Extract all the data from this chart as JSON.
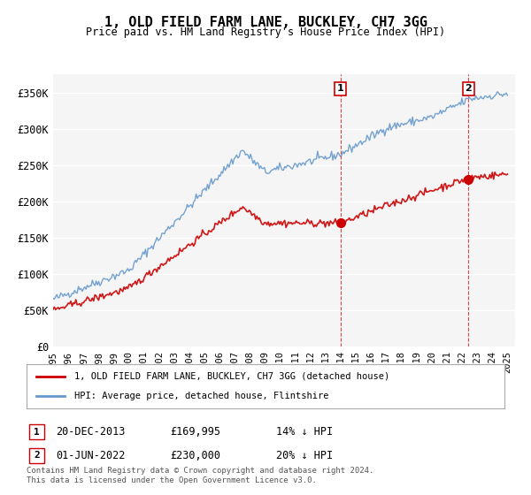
{
  "title": "1, OLD FIELD FARM LANE, BUCKLEY, CH7 3GG",
  "subtitle": "Price paid vs. HM Land Registry's House Price Index (HPI)",
  "ylabel_ticks": [
    "£0",
    "£50K",
    "£100K",
    "£150K",
    "£200K",
    "£250K",
    "£300K",
    "£350K"
  ],
  "ytick_values": [
    0,
    50000,
    100000,
    150000,
    200000,
    250000,
    300000,
    350000
  ],
  "ylim": [
    0,
    375000
  ],
  "xlim_start": 1995.0,
  "xlim_end": 2025.5,
  "legend_line1": "1, OLD FIELD FARM LANE, BUCKLEY, CH7 3GG (detached house)",
  "legend_line2": "HPI: Average price, detached house, Flintshire",
  "sale1_label": "1",
  "sale1_date": "20-DEC-2013",
  "sale1_price": "£169,995",
  "sale1_hpi": "14% ↓ HPI",
  "sale2_label": "2",
  "sale2_date": "01-JUN-2022",
  "sale2_price": "£230,000",
  "sale2_hpi": "20% ↓ HPI",
  "footnote": "Contains HM Land Registry data © Crown copyright and database right 2024.\nThis data is licensed under the Open Government Licence v3.0.",
  "red_color": "#cc0000",
  "blue_color": "#6699cc",
  "background_color": "#ffffff",
  "plot_bg_color": "#f5f5f5",
  "grid_color": "#ffffff",
  "sale1_x": 2013.97,
  "sale1_y": 169995,
  "sale2_x": 2022.42,
  "sale2_y": 230000
}
